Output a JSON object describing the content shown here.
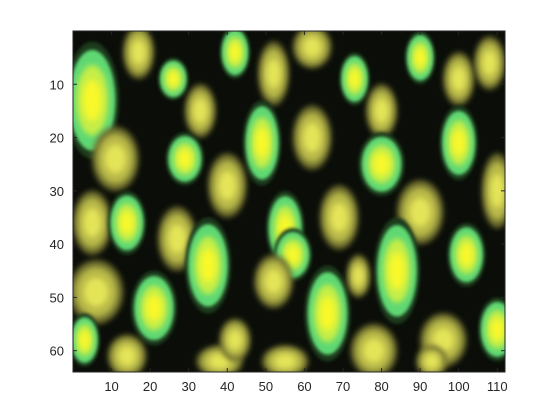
{
  "image": {
    "type": "imagesc",
    "description_colormap": [
      "#070b06",
      "#b6b84a",
      "#f6f62a",
      "#7fe47a"
    ],
    "xlim": [
      0,
      112
    ],
    "ylim": [
      0,
      64
    ],
    "x_ticks": [
      10,
      20,
      30,
      40,
      50,
      60,
      70,
      80,
      90,
      100,
      110
    ],
    "y_ticks": [
      10,
      20,
      30,
      40,
      50,
      60
    ],
    "x_tick_labels": [
      "10",
      "20",
      "30",
      "40",
      "50",
      "60",
      "70",
      "80",
      "90",
      "100",
      "110"
    ],
    "y_tick_labels": [
      "10",
      "20",
      "30",
      "40",
      "50",
      "60"
    ],
    "y_direction": "reverse",
    "grid": false
  }
}
